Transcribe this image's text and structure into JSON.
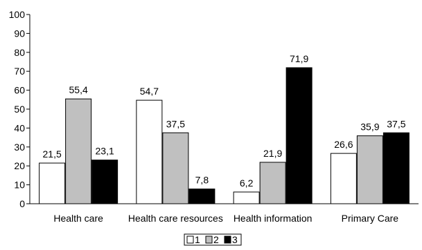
{
  "chart_data": {
    "type": "bar",
    "categories": [
      "Health care",
      "Health care resources",
      "Health information",
      "Primary Care"
    ],
    "series": [
      {
        "name": "1",
        "values": [
          21.5,
          54.7,
          6.2,
          26.6
        ],
        "labels": [
          "21,5",
          "54,7",
          "6,2",
          "26,6"
        ],
        "color": "#ffffff"
      },
      {
        "name": "2",
        "values": [
          55.4,
          37.5,
          21.9,
          35.9
        ],
        "labels": [
          "55,4",
          "37,5",
          "21,9",
          "35,9"
        ],
        "color": "#c0c0c0"
      },
      {
        "name": "3",
        "values": [
          23.1,
          7.8,
          71.9,
          37.5
        ],
        "labels": [
          "23,1",
          "7,8",
          "71,9",
          "37,5"
        ],
        "color": "#000000"
      }
    ],
    "title": "",
    "xlabel": "",
    "ylabel": "",
    "ylim": [
      0,
      100
    ],
    "yticks": [
      0,
      10,
      20,
      30,
      40,
      50,
      60,
      70,
      80,
      90,
      100
    ],
    "grid": false,
    "legend": "bottom-center"
  }
}
